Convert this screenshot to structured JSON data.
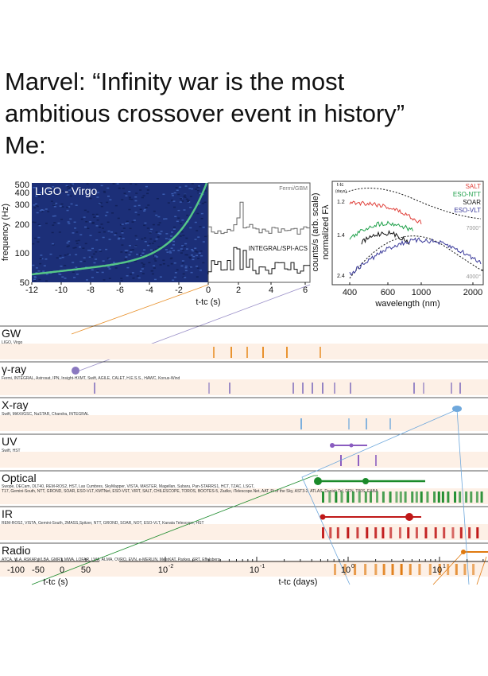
{
  "caption": [
    "Marvel:  “Infinity war is the most",
    "ambitious crossover event in history”",
    "Me:"
  ],
  "figure": {
    "gw_panel": {
      "label": "LIGO - Virgo",
      "y_label": "frequency (Hz)",
      "y_ticks": [
        "500",
        "400",
        "300",
        "200",
        "100",
        "50"
      ],
      "x_ticks": [
        "-12",
        "-10",
        "-8",
        "-6",
        "-4",
        "-2",
        "0"
      ]
    },
    "gamma_panel": {
      "top_label": "Fermi/GBM",
      "bottom_label": "INTEGRAL/SPI-ACS",
      "y_label": "counts/s (arb. scale)",
      "x_ticks": [
        "2",
        "4",
        "6"
      ],
      "x_label": "t-tc (s)"
    },
    "spectrum_panel": {
      "y_label": "normalized Fλ",
      "time_label": "t-tc",
      "time_unit": "(days)",
      "epochs": [
        "1.2",
        "1.4",
        "2.4"
      ],
      "legend": [
        {
          "name": "SALT",
          "color": "#e0403a"
        },
        {
          "name": "ESO-NTT",
          "color": "#1fa04a"
        },
        {
          "name": "SOAR",
          "color": "#111111"
        },
        {
          "name": "ESO-VLT",
          "color": "#3a3a9a"
        }
      ],
      "temps": [
        "7000°",
        "4000°"
      ],
      "x_ticks": [
        "400",
        "600",
        "1000",
        "2000"
      ],
      "x_label": "wavelength (nm)"
    },
    "bands": [
      {
        "name": "GW",
        "facilities": "LIGO, Virgo",
        "color": "#e8902a"
      },
      {
        "name": "γ-ray",
        "facilities": "Fermi, INTEGRAL, Astrosat, IPN, Insight-HXMT, Swift, AGILE, CALET, H.E.S.S., HAWC, Konus-Wind",
        "color": "#8a78c0"
      },
      {
        "name": "X-ray",
        "facilities": "Swift, MAXI/GSC, NuSTAR, Chandra, INTEGRAL",
        "color": "#6fa8dc"
      },
      {
        "name": "UV",
        "facilities": "Swift, HST",
        "color": "#8a5cc0"
      },
      {
        "name": "Optical",
        "facilities": "Swope, DECam, DLT40, REM-ROS2, HST, Las Cumbres, SkyMapper, VISTA, MASTER, Magellan, Subaru, Pan-STARRS1, HCT, TZAC, LSGT, T17, Gemini-South, NTT, GROND, SOAR, ESO-VLT, KMTNet, ESO-VST, VIRT, SALT, CHILESCOPE, TOROS, BOOTES-5, Zadko, iTelescope.Net, AAT, Pi of the Sky, AST3-2, ATLAS, Danish Tel, DFN, T80S, EABA",
        "color": "#1a8a2a"
      },
      {
        "name": "IR",
        "facilities": "REM-ROS2, VISTA, Gemini-South, 2MASS,Spitzer, NTT, GROND, SOAR, NOT, ESO-VLT, Kanata Telescope, HST",
        "color": "#c01818"
      },
      {
        "name": "Radio",
        "facilities": "ATCA, VLA, ASKAP, VLBA, GMRT, MWA, LOFAR, LWA, ALMA, OVRO, EVN, e-MERLIN, MeerKAT, Parkes, SRT, Effelsberg",
        "color": "#e07a10"
      }
    ],
    "axis_seconds": {
      "ticks": [
        "-100",
        "-50",
        "0",
        "50"
      ],
      "label": "t-tc (s)"
    },
    "axis_days": {
      "ticks": [
        {
          "base": "10",
          "exp": "-2"
        },
        {
          "base": "10",
          "exp": "-1"
        },
        {
          "base": "10",
          "exp": "0"
        },
        {
          "base": "10",
          "exp": "1"
        }
      ],
      "label": "t-tc (days)"
    }
  }
}
